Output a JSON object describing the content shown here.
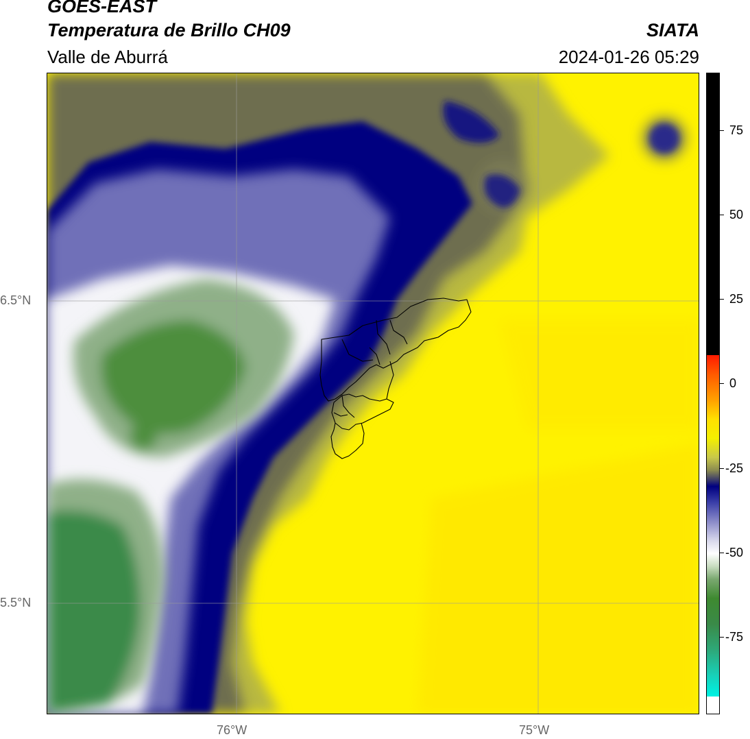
{
  "header": {
    "satellite": "GOES-EAST",
    "product": "Temperatura de Brillo CH09",
    "region": "Valle de Aburrá",
    "agency": "SIATA",
    "datetime": "2024-01-26 05:29"
  },
  "map": {
    "lat_labels": [
      "6.5°N",
      "5.5°N"
    ],
    "lon_labels": [
      "76°W",
      "75°W"
    ],
    "extent": {
      "lon_min": -76.62,
      "lon_max": -74.47,
      "lat_min": 5.13,
      "lat_max": 7.25
    },
    "field": "Brightness temperature CH09 (°C)",
    "features": [
      "cold cloud band (dark blue) arcing NW to SW",
      "very cold cloud tops (green) in west",
      "warm clear sky (yellow) in east",
      "municipal boundaries of Valle de Aburrá"
    ]
  },
  "colorbar": {
    "ticks": [
      "75",
      "50",
      "25",
      "0",
      "-25",
      "-50",
      "-75"
    ],
    "colors": {
      "hot": "#000000",
      "warm": "#ff1a00",
      "clear": "#f4f000",
      "cold_line": "#000080",
      "cloud": "#ffffff",
      "very_cold": "#3e8a30",
      "coldest": "#00f0e0"
    }
  }
}
